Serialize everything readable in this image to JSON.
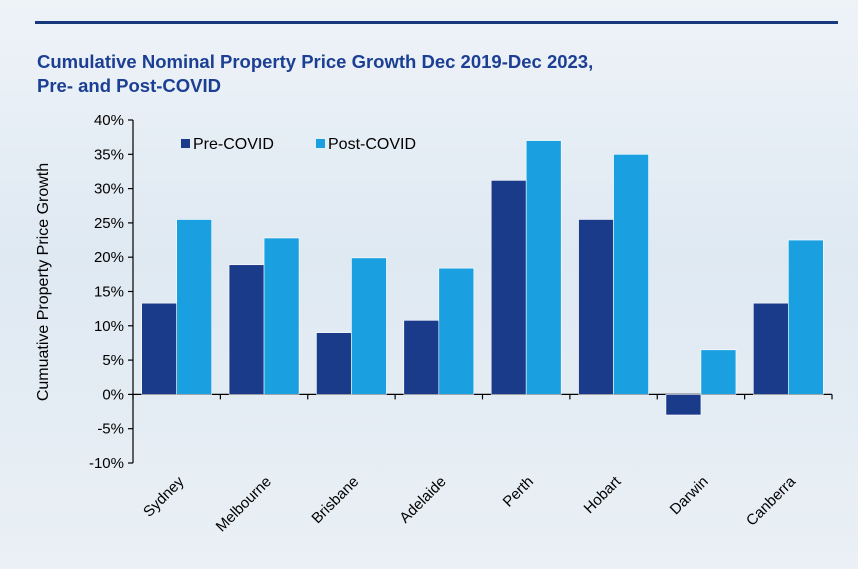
{
  "chart_data": {
    "type": "bar",
    "title_line1": "Cumulative Nominal Property Price Growth Dec 2019-Dec 2023,",
    "title_line2": "Pre- and Post-COVID",
    "ylabel": "Cumuative Property Price Growth",
    "xlabel": "",
    "categories": [
      "Sydney",
      "Melbourne",
      "Brisbane",
      "Adelaide",
      "Perth",
      "Hobart",
      "Darwin",
      "Canberra"
    ],
    "series": [
      {
        "name": "Pre-COVID",
        "color": "#1a3a8a",
        "values": [
          13.3,
          18.9,
          9.0,
          10.8,
          31.2,
          25.5,
          -3.0,
          13.3
        ]
      },
      {
        "name": "Post-COVID",
        "color": "#1aa0e0",
        "values": [
          25.5,
          22.8,
          19.9,
          18.4,
          37.0,
          35.0,
          6.5,
          22.5
        ]
      }
    ],
    "ylim": [
      -10,
      40
    ],
    "yticks": [
      -10,
      -5,
      0,
      5,
      10,
      15,
      20,
      25,
      30,
      35,
      40
    ],
    "ytick_labels": [
      "-10%",
      "-5%",
      "0%",
      "5%",
      "10%",
      "15%",
      "20%",
      "25%",
      "30%",
      "35%",
      "40%"
    ],
    "grid": false,
    "legend_position": "top-left"
  }
}
